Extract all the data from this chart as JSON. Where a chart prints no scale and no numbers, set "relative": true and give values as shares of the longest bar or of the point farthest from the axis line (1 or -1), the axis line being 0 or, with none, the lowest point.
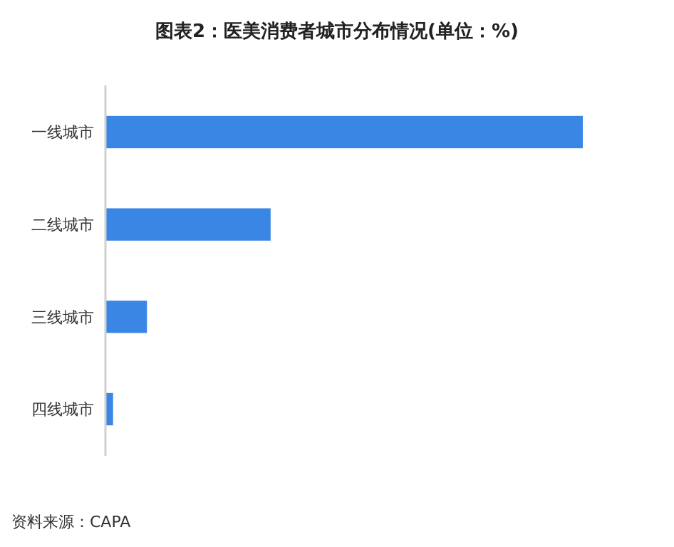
{
  "chart_data": {
    "type": "bar",
    "orientation": "horizontal",
    "relative": true,
    "title": "图表2：医美消费者城市分布情况(单位：%)",
    "categories": [
      "一线城市",
      "二线城市",
      "三线城市",
      "四线城市"
    ],
    "values": [
      1,
      0.346,
      0.087,
      0.016
    ],
    "color": "#3a86e4",
    "annotations": [
      "资料来源：CAPA"
    ]
  }
}
